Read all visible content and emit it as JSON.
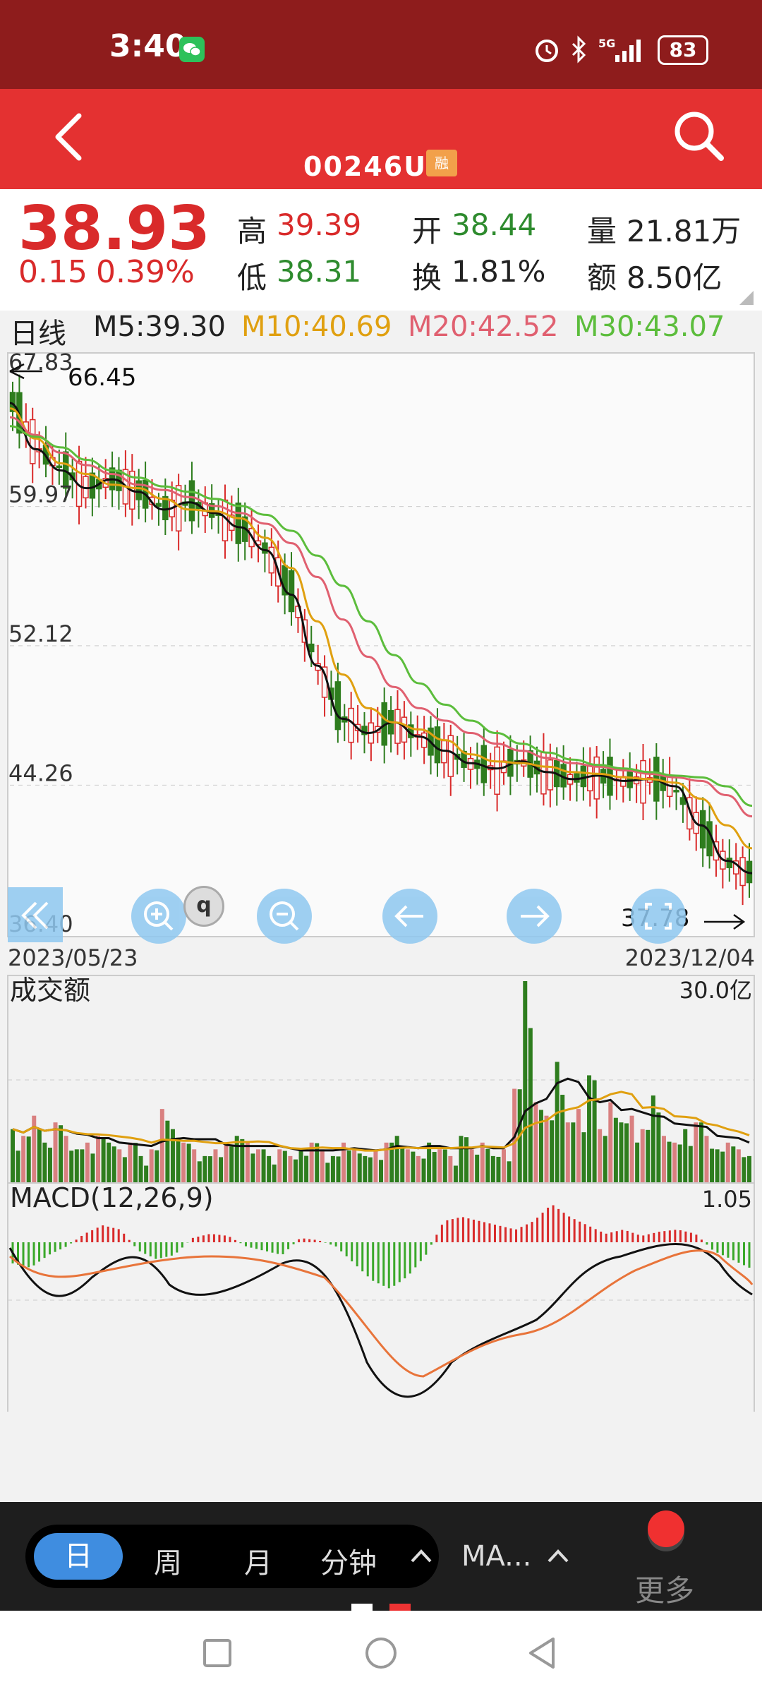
{
  "status": {
    "time": "3:40",
    "battery": "83",
    "signal": "5G"
  },
  "header": {
    "code": "00246U",
    "rong_badge": "融"
  },
  "quote": {
    "price": "38.93",
    "change": "0.15",
    "change_pct": "0.39%",
    "high_label": "高",
    "high": "39.39",
    "low_label": "低",
    "low": "38.31",
    "open_label": "开",
    "open": "38.44",
    "turnover_label": "换",
    "turnover": "1.81%",
    "volume_label": "量",
    "volume": "21.81万",
    "amount_label": "额",
    "amount": "8.50亿"
  },
  "ma_legend": {
    "period": "日线",
    "m5": "M5:39.30",
    "m10": "M10:40.69",
    "m20": "M20:42.52",
    "m30": "M30:43.07"
  },
  "chart_data": [
    {
      "type": "line",
      "title": "日线",
      "x_start": "2023/05/23",
      "x_end": "2023/12/04",
      "y_ticks": [
        "67.83",
        "59.97",
        "52.12",
        "44.26",
        "36.40"
      ],
      "ylim": [
        36.4,
        67.83
      ],
      "max_label": "66.45",
      "min_label": "37.78",
      "series": [
        {
          "name": "M5",
          "color": "#111111",
          "values": [
            65.8,
            63.2,
            62.0,
            61.0,
            61.5,
            60.8,
            59.8,
            60.2,
            59.6,
            58.8,
            57.5,
            55.0,
            51.0,
            48.0,
            47.2,
            47.8,
            47.0,
            46.2,
            45.5,
            45.2,
            45.6,
            45.0,
            44.6,
            44.8,
            44.5,
            44.6,
            44.2,
            42.0,
            40.0,
            39.3
          ]
        },
        {
          "name": "M10",
          "color": "#e0a010",
          "values": [
            65.5,
            63.8,
            62.4,
            61.8,
            61.2,
            61.0,
            60.4,
            59.8,
            59.7,
            59.3,
            58.2,
            56.5,
            53.5,
            50.5,
            48.6,
            47.8,
            47.4,
            46.8,
            46.0,
            45.6,
            45.5,
            45.3,
            45.0,
            44.9,
            44.7,
            44.6,
            44.4,
            43.5,
            42.0,
            40.7
          ]
        },
        {
          "name": "M20",
          "color": "#e06070",
          "values": [
            65.0,
            64.0,
            63.0,
            62.3,
            61.8,
            61.2,
            60.9,
            60.5,
            60.0,
            59.6,
            59.0,
            57.9,
            56.0,
            53.6,
            51.5,
            49.8,
            48.6,
            47.9,
            47.2,
            46.6,
            46.2,
            45.8,
            45.5,
            45.3,
            45.1,
            44.9,
            44.7,
            44.5,
            43.7,
            42.5
          ]
        },
        {
          "name": "M30",
          "color": "#5cbd3c",
          "values": [
            64.5,
            63.9,
            63.3,
            62.6,
            62.0,
            61.6,
            61.1,
            60.8,
            60.4,
            60.0,
            59.5,
            58.6,
            57.2,
            55.5,
            53.5,
            51.6,
            50.0,
            48.8,
            47.9,
            47.2,
            46.6,
            46.1,
            45.7,
            45.4,
            45.2,
            45.0,
            44.8,
            44.7,
            44.2,
            43.1
          ]
        }
      ]
    },
    {
      "type": "bar",
      "title": "成交额",
      "y_max_label": "30.0亿",
      "values": [
        8,
        7,
        10,
        6,
        9,
        7,
        5,
        6,
        7,
        6,
        5,
        6,
        4,
        5,
        11,
        8,
        6,
        5,
        4,
        5,
        6,
        7,
        6,
        5,
        4,
        5,
        4,
        5,
        6,
        5,
        4,
        6,
        5,
        4,
        5,
        6,
        7,
        5,
        4,
        6,
        5,
        4,
        7,
        5,
        6,
        4,
        5,
        14,
        30,
        12,
        10,
        18,
        9,
        11,
        16,
        8,
        12,
        9,
        10,
        8,
        13,
        7,
        6,
        8,
        9,
        7,
        5,
        6,
        5,
        4
      ]
    },
    {
      "type": "bar",
      "title": "MACD(12,26,9)",
      "y_max_label": "1.05",
      "values": [
        -0.5,
        -0.6,
        -0.3,
        -0.1,
        0.2,
        0.4,
        0.3,
        -0.2,
        -0.4,
        -0.3,
        0.1,
        0.2,
        0.15,
        -0.1,
        -0.2,
        -0.3,
        0.1,
        0.05,
        -0.1,
        -0.5,
        -0.9,
        -1.1,
        -0.8,
        -0.3,
        0.5,
        0.6,
        0.5,
        0.4,
        0.3,
        0.5,
        0.9,
        0.6,
        0.4,
        0.2,
        0.3,
        0.15,
        0.25,
        0.3,
        0.2,
        -0.2,
        -0.4,
        -0.6
      ]
    }
  ],
  "toolbar": {
    "tools": [
      "collapse",
      "zoom-in",
      "zoom-out",
      "pan-left",
      "pan-right",
      "fullscreen"
    ]
  },
  "bottom": {
    "day": "日",
    "week": "周",
    "month": "月",
    "minute": "分钟",
    "ma": "MA...",
    "more": "更多"
  }
}
